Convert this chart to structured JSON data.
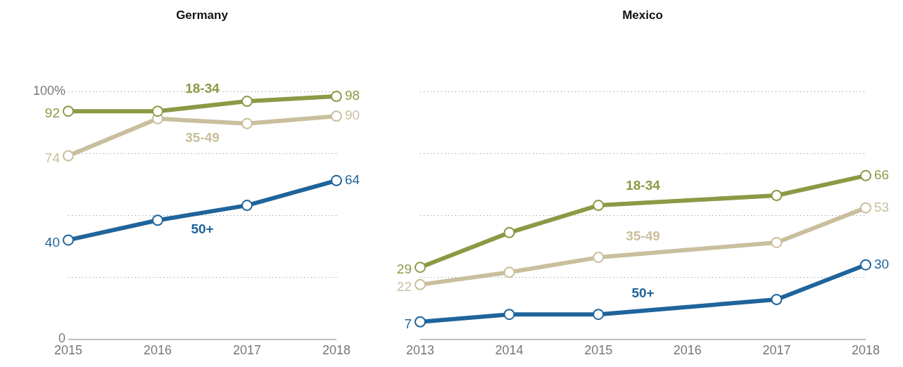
{
  "chart_data": [
    {
      "type": "line",
      "title": "Germany",
      "x": [
        2015,
        2016,
        2017,
        2018
      ],
      "xlim": [
        2015,
        2018
      ],
      "xticks": [
        2015,
        2016,
        2017,
        2018
      ],
      "ylim": [
        0,
        100
      ],
      "yticks": [
        {
          "value": 0,
          "label": "0"
        },
        {
          "value": 25,
          "label": null
        },
        {
          "value": 50,
          "label": null
        },
        {
          "value": 75,
          "label": null
        },
        {
          "value": 100,
          "label": "100%"
        }
      ],
      "grid": "y",
      "legend": false,
      "marker": "circle",
      "line_style": "solid",
      "series": [
        {
          "name": "18-34",
          "color": "#8a9a45",
          "values": [
            92,
            92,
            96,
            98
          ],
          "value_labels": [
            "92",
            null,
            null,
            "98"
          ]
        },
        {
          "name": "35-49",
          "color": "#c9bf9d",
          "values": [
            74,
            89,
            87,
            90
          ],
          "value_labels": [
            "74",
            null,
            null,
            "90"
          ]
        },
        {
          "name": "50+",
          "color": "#1f649b",
          "values": [
            40,
            48,
            54,
            64
          ],
          "value_labels": [
            "40",
            null,
            null,
            "64"
          ]
        }
      ]
    },
    {
      "type": "line",
      "title": "Mexico",
      "x": [
        2013,
        2014,
        2015,
        2017,
        2018
      ],
      "xlim": [
        2013,
        2018
      ],
      "xticks": [
        2013,
        2014,
        2015,
        2016,
        2017,
        2018
      ],
      "ylim": [
        0,
        100
      ],
      "yticks": [
        0,
        25,
        50,
        75,
        100
      ],
      "tick_labels": "x",
      "grid": "y",
      "legend": false,
      "marker": "circle",
      "line_style": "solid",
      "series": [
        {
          "name": "18-34",
          "color": "#8a9a45",
          "values": [
            29,
            43,
            54,
            58,
            66
          ],
          "value_labels": [
            "29",
            null,
            null,
            null,
            "66"
          ]
        },
        {
          "name": "35-49",
          "color": "#c9bf9d",
          "values": [
            22,
            27,
            33,
            39,
            53
          ],
          "value_labels": [
            "22",
            null,
            null,
            null,
            "53"
          ]
        },
        {
          "name": "50+",
          "color": "#1f649b",
          "values": [
            7,
            10,
            10,
            16,
            30
          ],
          "value_labels": [
            "7",
            null,
            null,
            null,
            "30"
          ]
        }
      ]
    }
  ]
}
